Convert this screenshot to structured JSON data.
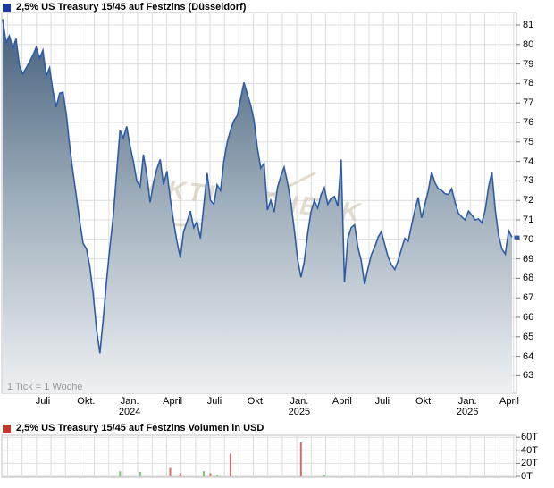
{
  "header": {
    "title": "2,5% US Treasury 15/45 auf Festzins (Düsseldorf)"
  },
  "watermark": {
    "text": "AKTIENCHECK"
  },
  "colors": {
    "price_line": "#2d5ca6",
    "price_legend": "#1a3a9e",
    "volume_legend": "#c0392b",
    "bar_up": "#6ecc6e",
    "bar_down": "#d46a6a",
    "grid": "#dcdcdc",
    "pane_border": "#c0c0c0",
    "fill_top": "#3f5c79",
    "fill_mid": "#a0afbc",
    "fill_bottom": "#eef1f3"
  },
  "chart_data": [
    {
      "type": "area",
      "title": "2,5% US Treasury 15/45 auf Festzins (Düsseldorf)",
      "tick_note": "1 Tick = 1 Woche",
      "x_unit": "week",
      "grid": true,
      "ylim": [
        63,
        81.8
      ],
      "y_tick_labels": [
        "81",
        "80",
        "79",
        "78",
        "77",
        "76",
        "75",
        "74",
        "73",
        "72",
        "71",
        "70",
        "69",
        "68",
        "67",
        "66",
        "65",
        "64",
        "63"
      ],
      "x_tick_labels": [
        {
          "label": "Juli",
          "week": 12
        },
        {
          "label": "Okt.",
          "week": 24.9
        },
        {
          "label": "Jan.",
          "year": "2024",
          "week": 37.9
        },
        {
          "label": "April",
          "week": 50.7
        },
        {
          "label": "Juli",
          "week": 63.2
        },
        {
          "label": "Okt.",
          "week": 75.7
        },
        {
          "label": "Jan.",
          "year": "2025",
          "week": 88.5
        },
        {
          "label": "April",
          "week": 101.3
        },
        {
          "label": "Juli",
          "week": 113.3
        },
        {
          "label": "Okt.",
          "week": 125.9
        },
        {
          "label": "Jan.",
          "year": "2026",
          "week": 138.7
        },
        {
          "label": "April",
          "week": 151.2
        }
      ],
      "last_value": 70.1,
      "series": [
        {
          "name": "2,5% US Treasury 15/45 auf Festzins",
          "values": [
            81.3,
            80.1,
            80.45,
            79.8,
            80.3,
            78.9,
            78.5,
            78.8,
            79.1,
            79.45,
            79.85,
            79.3,
            79.7,
            78.4,
            78.8,
            77.6,
            76.8,
            77.5,
            77.55,
            76.4,
            74.8,
            73.4,
            72.2,
            70.9,
            69.8,
            69.5,
            68.6,
            67.2,
            65.4,
            64.15,
            65.9,
            67.9,
            69.6,
            71.2,
            73.4,
            75.6,
            75.2,
            75.8,
            74.8,
            74.0,
            73.0,
            72.7,
            74.35,
            73.3,
            71.9,
            72.9,
            73.6,
            74.1,
            72.8,
            73.5,
            72.1,
            70.9,
            69.9,
            69.05,
            70.4,
            70.9,
            71.45,
            70.6,
            70.9,
            70.05,
            71.7,
            73.4,
            72.0,
            71.8,
            72.8,
            72.5,
            74.0,
            75.0,
            75.6,
            76.1,
            76.35,
            77.2,
            78.05,
            77.45,
            76.9,
            76.1,
            74.7,
            73.65,
            73.9,
            71.5,
            72.0,
            71.4,
            72.65,
            73.25,
            73.7,
            72.9,
            71.9,
            70.5,
            69.0,
            68.05,
            68.85,
            70.3,
            71.4,
            72.0,
            71.6,
            72.3,
            72.65,
            71.8,
            72.1,
            72.2,
            71.7,
            74.1,
            67.8,
            70.05,
            70.6,
            70.75,
            69.6,
            68.9,
            67.7,
            68.5,
            69.2,
            69.6,
            70.1,
            70.4,
            69.75,
            69.1,
            68.7,
            68.45,
            68.9,
            69.5,
            70.05,
            69.9,
            70.7,
            71.5,
            72.15,
            71.1,
            71.8,
            72.5,
            73.45,
            72.9,
            72.6,
            72.5,
            72.35,
            72.3,
            72.6,
            71.9,
            71.35,
            71.15,
            71.0,
            71.45,
            71.25,
            71.0,
            71.05,
            70.85,
            71.5,
            72.7,
            73.45,
            71.5,
            70.2,
            69.5,
            69.25,
            70.45,
            70.1
          ]
        }
      ]
    },
    {
      "type": "bar",
      "title": "2,5% US Treasury 15/45 auf Festzins Volumen in USD",
      "y_tick_labels": [
        "60T",
        "40T",
        "20T",
        "0T"
      ],
      "ylim": [
        0,
        65
      ],
      "y_unit": "T (Tausend USD)",
      "bars": [
        {
          "week": 35,
          "value_t": 8,
          "dir": "up"
        },
        {
          "week": 41,
          "value_t": 7,
          "dir": "up"
        },
        {
          "week": 50,
          "value_t": 13,
          "dir": "down"
        },
        {
          "week": 53,
          "value_t": 5,
          "dir": "down"
        },
        {
          "week": 60,
          "value_t": 8,
          "dir": "up"
        },
        {
          "week": 62,
          "value_t": 5,
          "dir": "down"
        },
        {
          "week": 64,
          "value_t": 2,
          "dir": "up"
        },
        {
          "week": 68,
          "value_t": 35,
          "dir": "down"
        },
        {
          "week": 89,
          "value_t": 52,
          "dir": "down"
        },
        {
          "week": 96,
          "value_t": 2,
          "dir": "up"
        }
      ]
    }
  ]
}
